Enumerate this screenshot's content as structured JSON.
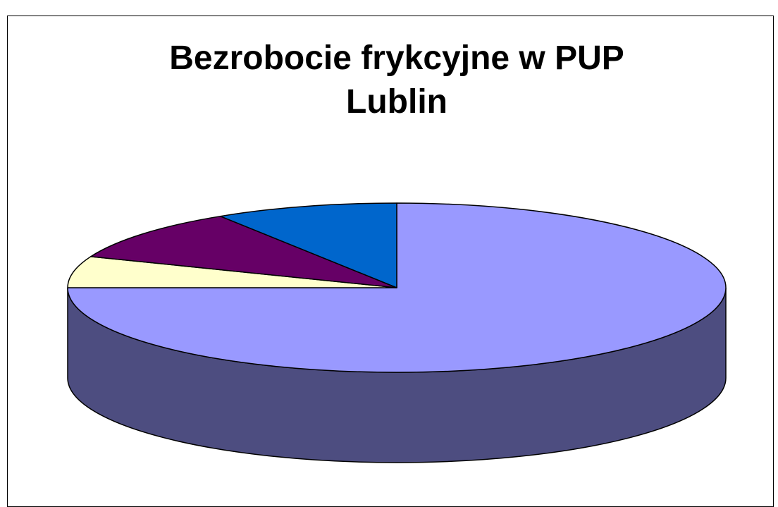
{
  "chart_data": {
    "type": "pie3d",
    "title": "Bezrobocie frykcyjne w PUP Lublin",
    "values": [
      75,
      6,
      10,
      9
    ],
    "colors": [
      "#9999ff",
      "#ffffcc",
      "#660066",
      "#0066cc"
    ],
    "start_angle": "top",
    "direction": "clockwise"
  }
}
